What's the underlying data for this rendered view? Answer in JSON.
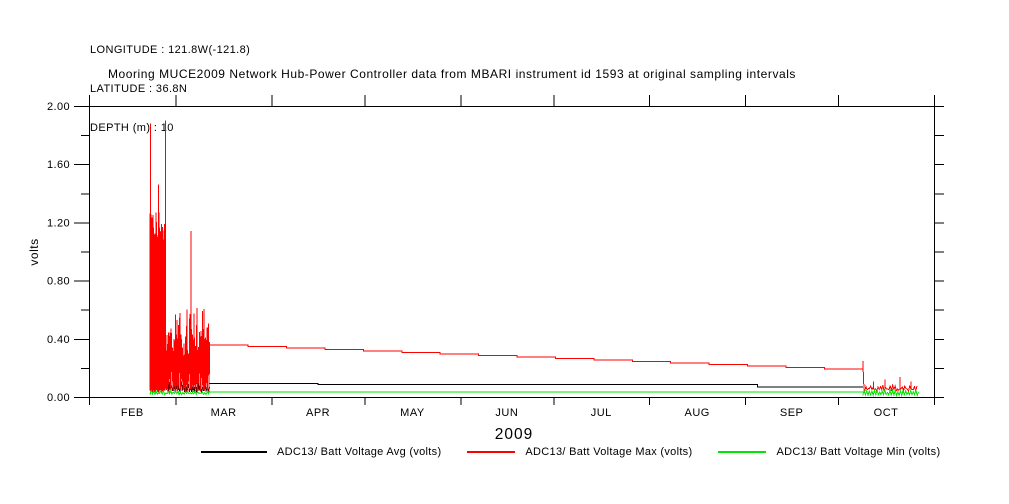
{
  "header": {
    "lines": [
      "LONGITUDE : 121.8W(-121.8)",
      "LATITUDE : 36.8N",
      "DEPTH (m) : 10"
    ]
  },
  "title": "Mooring MUCE2009 Network Hub-Power Controller data from MBARI instrument id 1593 at original sampling intervals",
  "chart_data": {
    "type": "line",
    "title": "Mooring MUCE2009 Network Hub-Power Controller data from MBARI instrument id 1593 at original sampling intervals",
    "ylabel": "volts",
    "year_label": "2009",
    "ylim": [
      0.0,
      2.0
    ],
    "ytick_major": [
      0.0,
      0.4,
      0.8,
      1.2,
      1.6,
      2.0
    ],
    "ytick_minor": [
      0.2,
      0.6,
      1.0,
      1.4,
      1.8
    ],
    "ytick_labels": [
      "0.00",
      "0.40",
      "0.80",
      "1.20",
      "1.60",
      "2.00"
    ],
    "months": [
      "FEB",
      "MAR",
      "APR",
      "MAY",
      "JUN",
      "JUL",
      "AUG",
      "SEP",
      "OCT"
    ],
    "month_boundary_days": [
      0,
      28,
      59,
      89,
      120,
      150,
      181,
      212,
      242,
      273
    ],
    "day_range": [
      0,
      273
    ],
    "grid": false,
    "legend_position": "bottom",
    "series": [
      {
        "name": "ADC13/ Batt Voltage Avg (volts)",
        "color": "#000000",
        "segments": [
          {
            "type": "noise",
            "from": 25.5,
            "to": 39,
            "n": 36,
            "lo": 0.03,
            "hi": 0.115,
            "jlo": 0.02,
            "jhi": 0.05,
            "seed": 7
          },
          {
            "type": "poly",
            "points": [
              [
                39,
                0.093
              ],
              [
                74,
                0.093
              ],
              [
                74,
                0.087
              ],
              [
                216,
                0.087
              ],
              [
                216,
                0.07
              ],
              [
                250,
                0.07
              ]
            ]
          }
        ]
      },
      {
        "name": "ADC13/ Batt Voltage Max (volts)",
        "color": "#ff0000",
        "segments": [
          {
            "type": "noise",
            "from": 19.7,
            "to": 24.5,
            "n": 56,
            "lo": 0.03,
            "hi": 1.27,
            "jlo": 0.02,
            "jhi": 0.22,
            "seed": 3
          },
          {
            "type": "vspikes",
            "base": 0.06,
            "spikes": [
              [
                19.9,
                1.88
              ],
              [
                22.5,
                1.46
              ],
              [
                24.7,
                1.9
              ],
              [
                33,
                1.14
              ]
            ]
          },
          {
            "type": "noise",
            "from": 24.5,
            "to": 39,
            "n": 64,
            "lo": 0.03,
            "hi": 0.62,
            "jlo": 0.03,
            "jhi": 0.33,
            "seed": 11
          },
          {
            "type": "stair",
            "from_day": 39,
            "from_val": 0.357,
            "to_day": 250,
            "to_val": 0.181,
            "steps": 17
          },
          {
            "type": "poly",
            "points": [
              [
                250,
                0.181
              ],
              [
                250,
                0.247
              ],
              [
                250.4,
                0.05
              ]
            ]
          },
          {
            "type": "noise",
            "from": 250.6,
            "to": 267.5,
            "n": 44,
            "lo": 0.04,
            "hi": 0.085,
            "jlo": 0.02,
            "jhi": 0.035,
            "seed": 19
          },
          {
            "type": "vspikes",
            "base": 0.05,
            "spikes": [
              [
                253.5,
                0.105
              ],
              [
                257.2,
                0.12
              ],
              [
                262,
                0.137
              ],
              [
                265.5,
                0.105
              ]
            ]
          }
        ]
      },
      {
        "name": "ADC13/ Batt Voltage Min (volts)",
        "color": "#00e400",
        "segments": [
          {
            "type": "noise",
            "from": 19.7,
            "to": 39,
            "n": 50,
            "lo": 0.015,
            "hi": 0.045,
            "jlo": 0.01,
            "jhi": 0.018,
            "seed": 23
          },
          {
            "type": "poly",
            "points": [
              [
                39,
                0.034
              ],
              [
                250,
                0.034
              ]
            ]
          },
          {
            "type": "noise",
            "from": 250,
            "to": 268,
            "n": 44,
            "lo": 0.01,
            "hi": 0.048,
            "jlo": 0.008,
            "jhi": 0.02,
            "seed": 29
          }
        ]
      }
    ]
  },
  "legend": {
    "items": [
      {
        "label": "ADC13/ Batt Voltage Avg (volts)",
        "color": "#000000"
      },
      {
        "label": "ADC13/ Batt Voltage Max (volts)",
        "color": "#ff0000"
      },
      {
        "label": "ADC13/ Batt Voltage Min (volts)",
        "color": "#00e400"
      }
    ]
  }
}
